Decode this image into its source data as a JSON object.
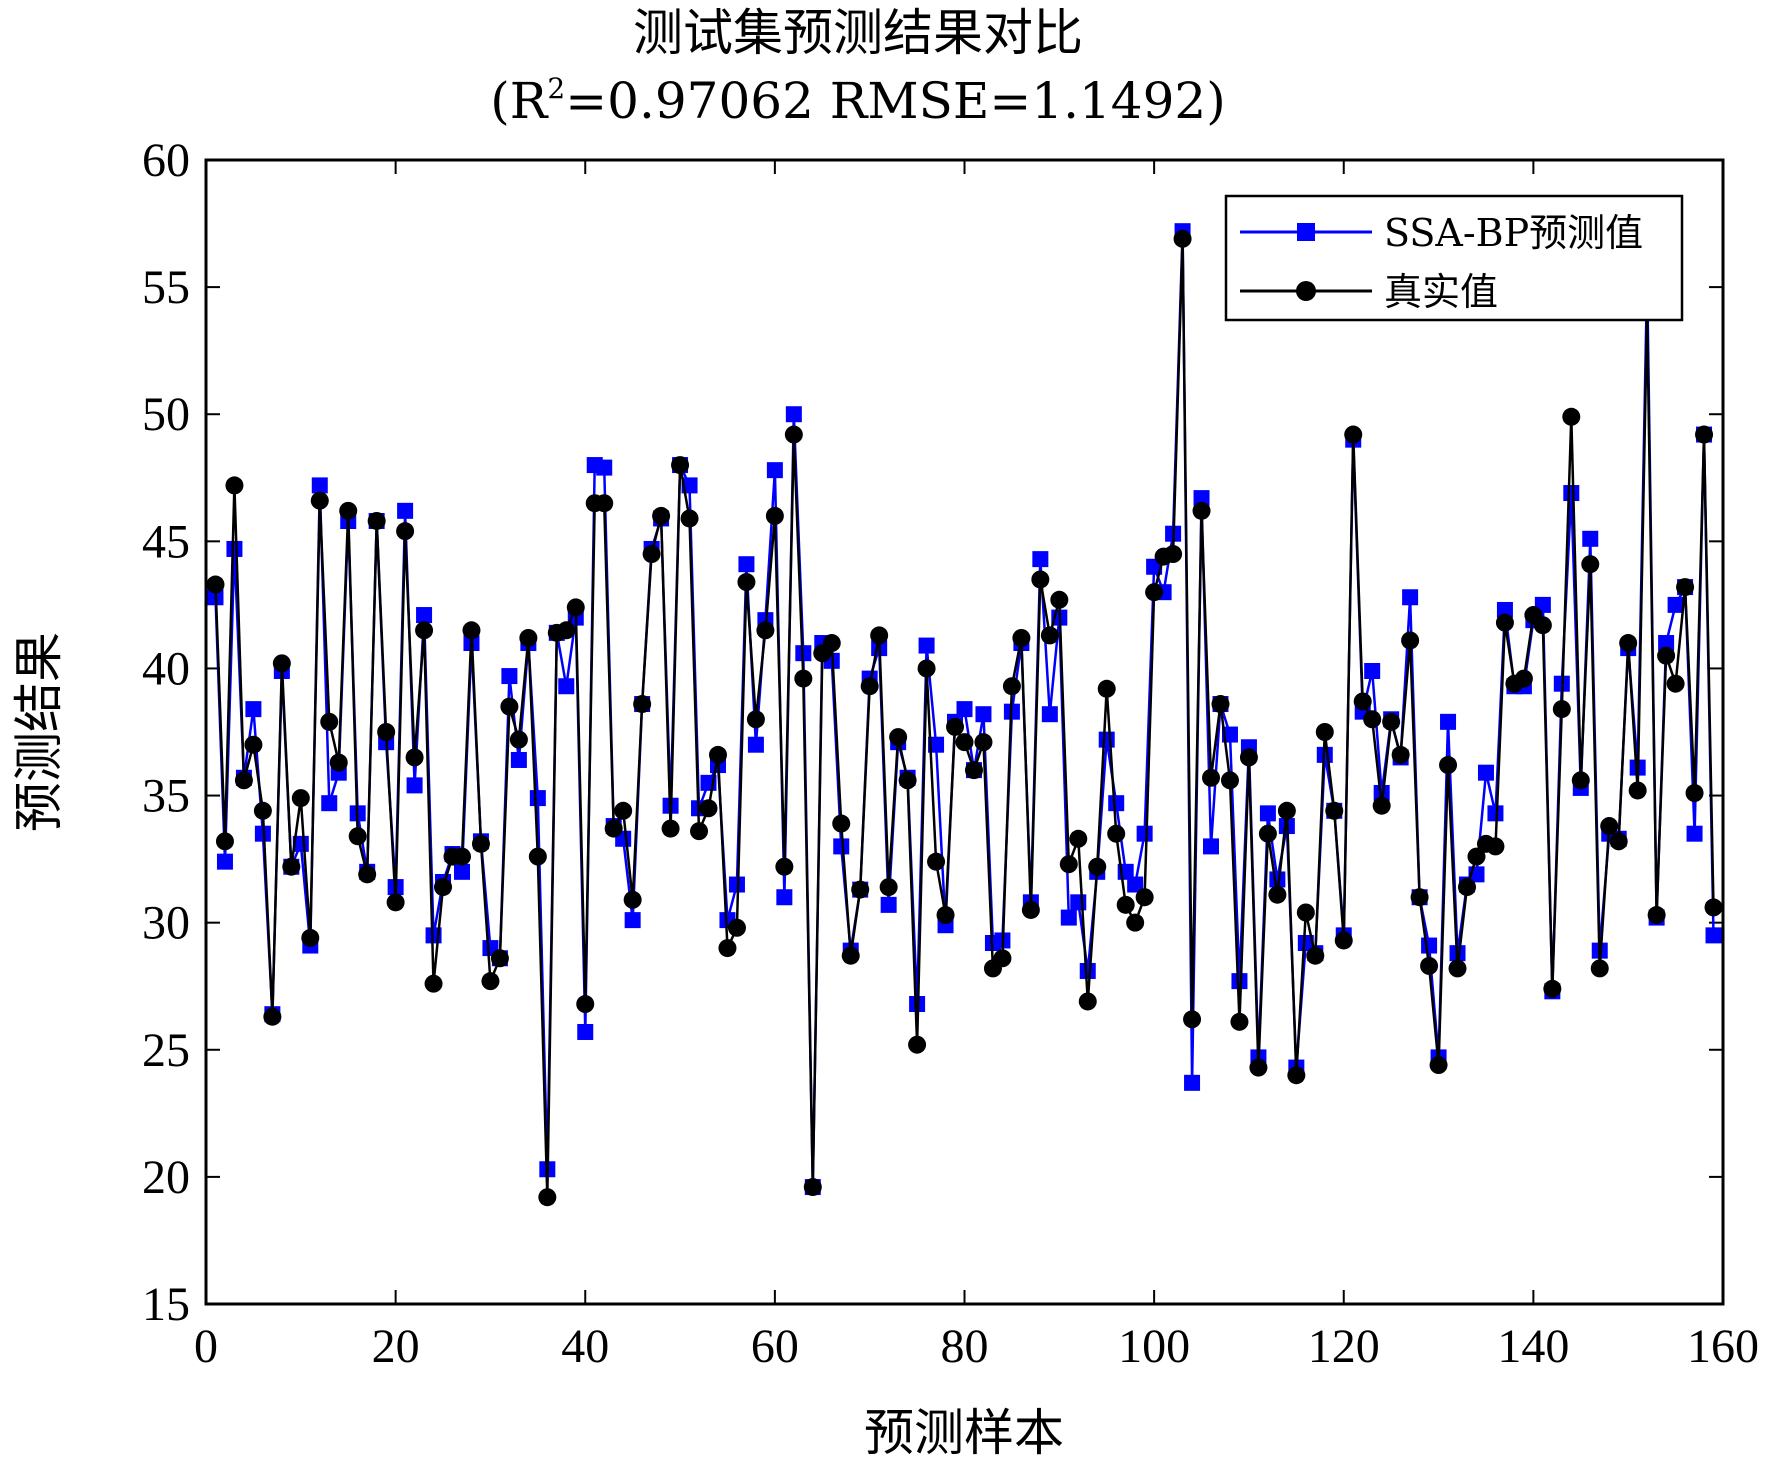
{
  "chart_data": {
    "type": "line",
    "title": "测试集预测结果对比",
    "subtitle_parts": [
      "(R",
      "2",
      "=0.97062 RMSE=1.1492)"
    ],
    "xlabel": "预测样本",
    "ylabel": "预测结果",
    "xlim": [
      0,
      160
    ],
    "ylim": [
      15,
      60
    ],
    "xticks": [
      0,
      20,
      40,
      60,
      80,
      100,
      120,
      140,
      160
    ],
    "yticks": [
      15,
      20,
      25,
      30,
      35,
      40,
      45,
      50,
      55,
      60
    ],
    "grid": false,
    "legend_position": "top-right",
    "series": [
      {
        "name": "SSA-BP预测值",
        "color": "#0000ff",
        "marker": "square",
        "values": [
          42.8,
          32.4,
          44.7,
          35.7,
          38.4,
          33.5,
          26.4,
          39.9,
          32.2,
          33.1,
          29.1,
          47.2,
          34.7,
          35.9,
          45.8,
          34.3,
          32.0,
          45.8,
          37.1,
          31.4,
          46.2,
          35.4,
          42.1,
          29.5,
          31.6,
          32.7,
          32.0,
          41.0,
          33.2,
          29.0,
          28.6,
          39.7,
          36.4,
          41.0,
          34.9,
          20.3,
          41.4,
          39.3,
          42.0,
          25.7,
          48.0,
          47.9,
          33.8,
          33.3,
          30.1,
          38.6,
          44.7,
          45.9,
          34.6,
          48.0,
          47.2,
          34.5,
          35.5,
          36.2,
          30.1,
          31.5,
          44.1,
          37.0,
          41.9,
          47.8,
          31.0,
          50.0,
          40.6,
          19.6,
          41.0,
          40.3,
          33.0,
          28.9,
          31.3,
          39.6,
          40.8,
          30.7,
          37.1,
          35.7,
          26.8,
          40.9,
          37.0,
          29.9,
          37.9,
          38.4,
          36.0,
          38.2,
          29.2,
          29.3,
          38.3,
          41.0,
          30.8,
          44.3,
          38.2,
          42.0,
          30.2,
          30.8,
          28.1,
          32.0,
          37.2,
          34.7,
          32.0,
          31.5,
          33.5,
          44.0,
          43.0,
          45.3,
          57.2,
          23.7,
          46.7,
          33.0,
          38.6,
          37.4,
          27.7,
          36.9,
          24.7,
          34.3,
          31.7,
          33.8,
          24.3,
          29.2,
          28.8,
          36.6,
          34.4,
          29.5,
          49.0,
          38.3,
          39.9,
          35.1,
          38.0,
          36.5,
          42.8,
          31.0,
          29.1,
          24.7,
          37.9,
          28.8,
          31.5,
          31.9,
          35.9,
          34.3,
          42.3,
          39.3,
          39.3,
          41.9,
          42.5,
          27.3,
          39.4,
          46.9,
          35.3,
          45.1,
          28.9,
          33.5,
          33.3,
          40.8,
          36.1,
          55.4,
          30.2,
          41.0,
          42.5,
          43.2,
          33.5,
          49.2,
          29.5
        ]
      },
      {
        "name": "真实值",
        "color": "#000000",
        "marker": "circle",
        "values": [
          43.3,
          33.2,
          47.2,
          35.6,
          37.0,
          34.4,
          26.3,
          40.2,
          32.2,
          34.9,
          29.4,
          46.6,
          37.9,
          36.3,
          46.2,
          33.4,
          31.9,
          45.8,
          37.5,
          30.8,
          45.4,
          36.5,
          41.5,
          27.6,
          31.4,
          32.6,
          32.6,
          41.5,
          33.1,
          27.7,
          28.6,
          38.5,
          37.2,
          41.2,
          32.6,
          19.2,
          41.4,
          41.5,
          42.4,
          26.8,
          46.5,
          46.5,
          33.7,
          34.4,
          30.9,
          38.6,
          44.5,
          46.0,
          33.7,
          48.0,
          45.9,
          33.6,
          34.5,
          36.6,
          29.0,
          29.8,
          43.4,
          38.0,
          41.5,
          46.0,
          32.2,
          49.2,
          39.6,
          19.6,
          40.6,
          41.0,
          33.9,
          28.7,
          31.3,
          39.3,
          41.3,
          31.4,
          37.3,
          35.6,
          25.2,
          40.0,
          32.4,
          30.3,
          37.7,
          37.1,
          36.0,
          37.1,
          28.2,
          28.6,
          39.3,
          41.2,
          30.5,
          43.5,
          41.3,
          42.7,
          32.3,
          33.3,
          26.9,
          32.2,
          39.2,
          33.5,
          30.7,
          30.0,
          31.0,
          43.0,
          44.4,
          44.5,
          56.9,
          26.2,
          46.2,
          35.7,
          38.6,
          35.6,
          26.1,
          36.5,
          24.3,
          33.5,
          31.1,
          34.4,
          24.0,
          30.4,
          28.7,
          37.5,
          34.4,
          29.3,
          49.2,
          38.7,
          38.0,
          34.6,
          37.9,
          36.6,
          41.1,
          31.0,
          28.3,
          24.4,
          36.2,
          28.2,
          31.4,
          32.6,
          33.1,
          33.0,
          41.8,
          39.4,
          39.6,
          42.1,
          41.7,
          27.4,
          38.4,
          49.9,
          35.6,
          44.1,
          28.2,
          33.8,
          33.2,
          41.0,
          35.2,
          54.0,
          30.3,
          40.5,
          39.4,
          43.2,
          35.1,
          49.2,
          30.6
        ]
      }
    ]
  }
}
